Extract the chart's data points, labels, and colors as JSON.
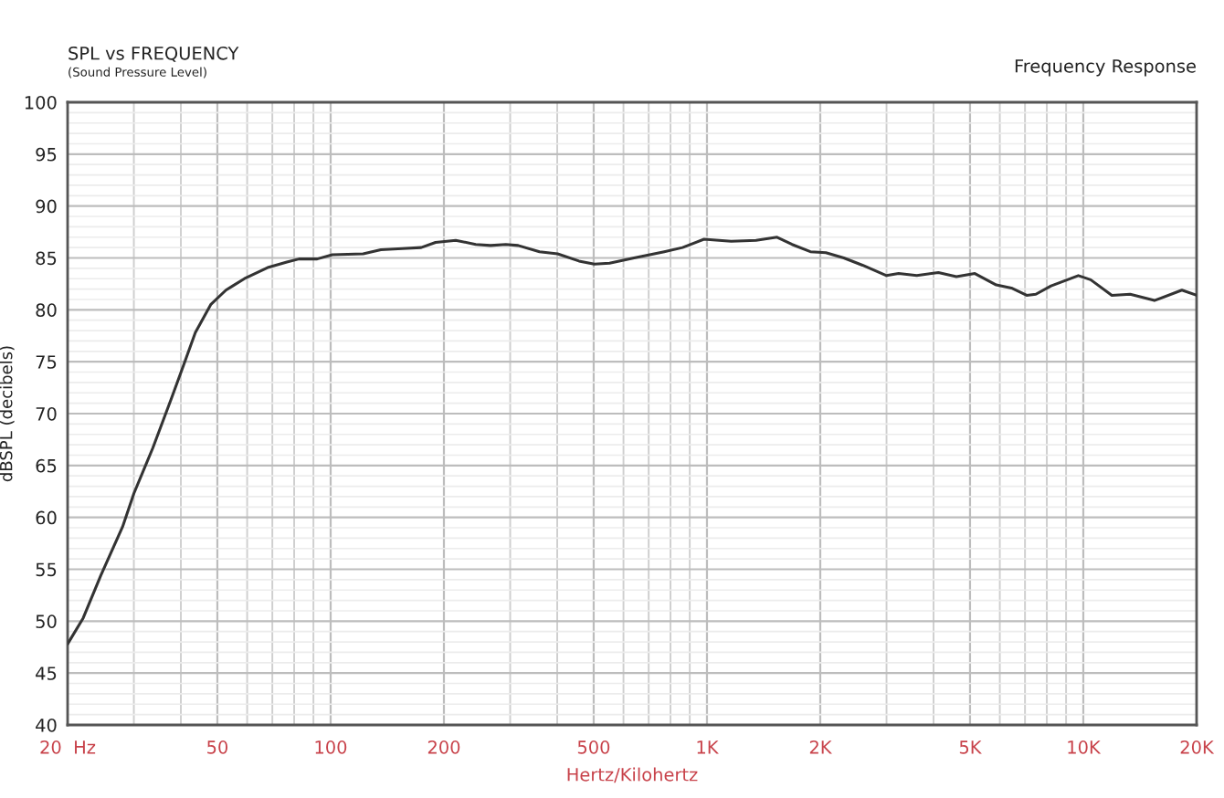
{
  "chart_data": {
    "type": "line",
    "title": "SPL vs FREQUENCY",
    "subtitle": "(Sound Pressure Level)",
    "xlabel": "Hertz/Kilohertz",
    "ylabel": "dBSPL (decibels)",
    "annotations": [
      "Frequency Response"
    ],
    "x": [
      20,
      22,
      24.5,
      28,
      30,
      33.7,
      37.7,
      40.6,
      43.7,
      48,
      52.7,
      59,
      68.4,
      76.5,
      82.4,
      92.1,
      101,
      122,
      136,
      155,
      174,
      190,
      215,
      243,
      266,
      292,
      315,
      359,
      401,
      457,
      502,
      551,
      640,
      770,
      861,
      982,
      1160,
      1350,
      1535,
      1683,
      1883,
      2070,
      2310,
      2590,
      3000,
      3230,
      3610,
      4120,
      4600,
      5150,
      5870,
      6440,
      7070,
      7480,
      8210,
      9700,
      10460,
      11910,
      13320,
      15450,
      18280,
      20000
    ],
    "series": [
      {
        "color": "#333333",
        "values": [
          47.8,
          50.3,
          54.4,
          59.1,
          62.3,
          66.7,
          71.4,
          74.6,
          77.8,
          80.5,
          81.9,
          83.0,
          84.1,
          84.6,
          84.9,
          84.9,
          85.3,
          85.4,
          85.8,
          85.9,
          86.0,
          86.5,
          86.7,
          86.3,
          86.2,
          86.3,
          86.2,
          85.6,
          85.4,
          84.7,
          84.4,
          84.5,
          85.0,
          85.6,
          86.0,
          86.8,
          86.6,
          86.7,
          87.0,
          86.3,
          85.6,
          85.5,
          85.0,
          84.3,
          83.3,
          83.5,
          83.3,
          83.6,
          83.2,
          83.5,
          82.4,
          82.1,
          81.4,
          81.5,
          82.3,
          83.3,
          82.9,
          81.4,
          81.5,
          80.9,
          81.9,
          81.4
        ]
      }
    ],
    "log": "x",
    "xlim": [
      20,
      20000
    ],
    "xticks": [
      {
        "value": 20,
        "label": "20  Hz"
      },
      {
        "value": 30,
        "label": null
      },
      {
        "value": 40,
        "label": null
      },
      50,
      {
        "value": 60,
        "label": null
      },
      {
        "value": 70,
        "label": null
      },
      {
        "value": 80,
        "label": null
      },
      {
        "value": 90,
        "label": null
      },
      100,
      200,
      {
        "value": 300,
        "label": null
      },
      {
        "value": 400,
        "label": null
      },
      500,
      {
        "value": 600,
        "label": null
      },
      {
        "value": 700,
        "label": null
      },
      {
        "value": 800,
        "label": null
      },
      {
        "value": 900,
        "label": null
      },
      {
        "value": 1000,
        "label": "1K"
      },
      {
        "value": 2000,
        "label": "2K"
      },
      {
        "value": 3000,
        "label": null
      },
      {
        "value": 4000,
        "label": null
      },
      {
        "value": 5000,
        "label": "5K"
      },
      {
        "value": 6000,
        "label": null
      },
      {
        "value": 7000,
        "label": null
      },
      {
        "value": 8000,
        "label": null
      },
      {
        "value": 9000,
        "label": null
      },
      {
        "value": 10000,
        "label": "10K"
      },
      {
        "value": 20000,
        "label": "20K"
      }
    ],
    "ylim": [
      40,
      100
    ],
    "yticks": [
      40,
      {
        "value": 41,
        "label": null
      },
      {
        "value": 42,
        "label": null
      },
      {
        "value": 43,
        "label": null
      },
      {
        "value": 44,
        "label": null
      },
      45,
      {
        "value": 46,
        "label": null
      },
      {
        "value": 47,
        "label": null
      },
      {
        "value": 48,
        "label": null
      },
      {
        "value": 49,
        "label": null
      },
      50,
      {
        "value": 51,
        "label": null
      },
      {
        "value": 52,
        "label": null
      },
      {
        "value": 53,
        "label": null
      },
      {
        "value": 54,
        "label": null
      },
      55,
      {
        "value": 56,
        "label": null
      },
      {
        "value": 57,
        "label": null
      },
      {
        "value": 58,
        "label": null
      },
      {
        "value": 59,
        "label": null
      },
      60,
      {
        "value": 61,
        "label": null
      },
      {
        "value": 62,
        "label": null
      },
      {
        "value": 63,
        "label": null
      },
      {
        "value": 64,
        "label": null
      },
      65,
      {
        "value": 66,
        "label": null
      },
      {
        "value": 67,
        "label": null
      },
      {
        "value": 68,
        "label": null
      },
      {
        "value": 69,
        "label": null
      },
      70,
      {
        "value": 71,
        "label": null
      },
      {
        "value": 72,
        "label": null
      },
      {
        "value": 73,
        "label": null
      },
      {
        "value": 74,
        "label": null
      },
      75,
      {
        "value": 76,
        "label": null
      },
      {
        "value": 77,
        "label": null
      },
      {
        "value": 78,
        "label": null
      },
      {
        "value": 79,
        "label": null
      },
      80,
      {
        "value": 81,
        "label": null
      },
      {
        "value": 82,
        "label": null
      },
      {
        "value": 83,
        "label": null
      },
      {
        "value": 84,
        "label": null
      },
      85,
      {
        "value": 86,
        "label": null
      },
      {
        "value": 87,
        "label": null
      },
      {
        "value": 88,
        "label": null
      },
      {
        "value": 89,
        "label": null
      },
      90,
      {
        "value": 91,
        "label": null
      },
      {
        "value": 92,
        "label": null
      },
      {
        "value": 93,
        "label": null
      },
      {
        "value": 94,
        "label": null
      },
      95,
      {
        "value": 96,
        "label": null
      },
      {
        "value": 97,
        "label": null
      },
      {
        "value": 98,
        "label": null
      },
      {
        "value": 99,
        "label": null
      },
      100
    ],
    "grid": true
  }
}
